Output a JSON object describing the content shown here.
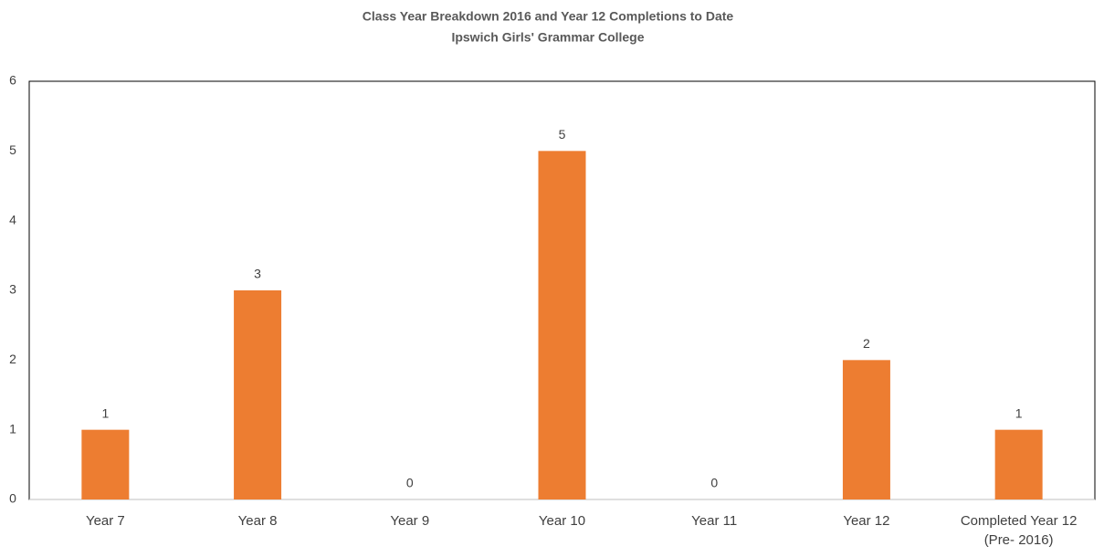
{
  "chart_data": {
    "type": "bar",
    "title": "Class Year Breakdown 2016 and Year 12 Completions to Date",
    "subtitle": "Ipswich Girls' Grammar College",
    "categories": [
      "Year 7",
      "Year 8",
      "Year 9",
      "Year 10",
      "Year 11",
      "Year 12",
      "Completed Year 12 (Pre- 2016)"
    ],
    "values": [
      1,
      3,
      0,
      5,
      0,
      2,
      1
    ],
    "color": "#ed7d31",
    "ylim": [
      0,
      6
    ],
    "yticks": [
      0,
      1,
      2,
      3,
      4,
      5,
      6
    ],
    "grid": false
  }
}
